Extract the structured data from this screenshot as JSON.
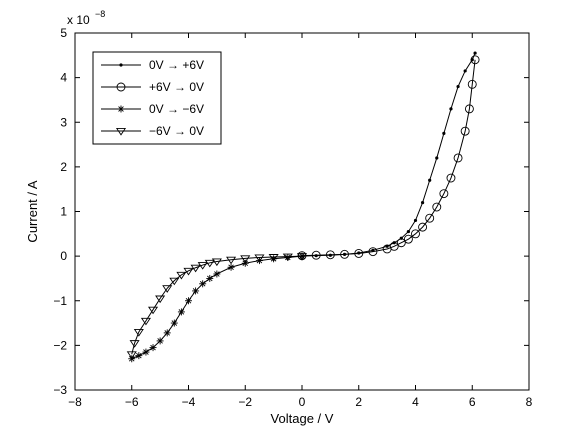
{
  "chart_data": {
    "type": "line",
    "xlabel": "Voltage / V",
    "ylabel": "Current / A",
    "y_exponent_label": "x 10",
    "y_exponent_power": "−8",
    "xlim": [
      -8,
      8
    ],
    "ylim": [
      -3,
      5
    ],
    "x_ticks": [
      -8,
      -6,
      -4,
      -2,
      0,
      2,
      4,
      6,
      8
    ],
    "y_ticks": [
      -3,
      -2,
      -1,
      0,
      1,
      2,
      3,
      4,
      5
    ],
    "x_tick_labels": [
      "−8",
      "−6",
      "−4",
      "−2",
      "0",
      "2",
      "4",
      "6",
      "8"
    ],
    "y_tick_labels": [
      "−3",
      "−2",
      "−1",
      "0",
      "1",
      "2",
      "3",
      "4",
      "5"
    ],
    "legend_position": "top-left",
    "grid": false,
    "series_color": "#000000",
    "series": [
      {
        "name": "0V → +6V",
        "marker": "dot",
        "x": [
          0,
          0.5,
          1,
          1.5,
          2,
          2.5,
          3,
          3.25,
          3.5,
          3.75,
          4,
          4.25,
          4.5,
          4.75,
          5,
          5.25,
          5.5,
          5.75,
          6,
          6.1
        ],
        "y": [
          0,
          0.01,
          0.02,
          0.04,
          0.07,
          0.13,
          0.22,
          0.3,
          0.4,
          0.55,
          0.8,
          1.2,
          1.7,
          2.2,
          2.75,
          3.3,
          3.8,
          4.15,
          4.4,
          4.55
        ]
      },
      {
        "name": "+6V → 0V",
        "marker": "circle",
        "x": [
          6.1,
          6,
          5.9,
          5.75,
          5.5,
          5.25,
          5,
          4.75,
          4.5,
          4.25,
          4,
          3.75,
          3.5,
          3.25,
          3,
          2.5,
          2,
          1.5,
          1,
          0.5,
          0
        ],
        "y": [
          4.4,
          3.85,
          3.3,
          2.8,
          2.2,
          1.75,
          1.4,
          1.1,
          0.85,
          0.65,
          0.5,
          0.38,
          0.3,
          0.22,
          0.16,
          0.1,
          0.06,
          0.04,
          0.03,
          0.02,
          0.01
        ]
      },
      {
        "name": "0V → −6V",
        "marker": "asterisk",
        "x": [
          0,
          -0.5,
          -1,
          -1.5,
          -2,
          -2.5,
          -3,
          -3.25,
          -3.5,
          -3.75,
          -4,
          -4.25,
          -4.5,
          -4.75,
          -5,
          -5.25,
          -5.5,
          -5.75,
          -6
        ],
        "y": [
          0,
          -0.03,
          -0.06,
          -0.1,
          -0.16,
          -0.25,
          -0.4,
          -0.5,
          -0.62,
          -0.78,
          -1.0,
          -1.25,
          -1.5,
          -1.72,
          -1.9,
          -2.05,
          -2.15,
          -2.23,
          -2.3
        ]
      },
      {
        "name": "−6V → 0V",
        "marker": "triangle-down",
        "x": [
          -6,
          -5.9,
          -5.75,
          -5.5,
          -5.25,
          -5,
          -4.75,
          -4.5,
          -4.25,
          -4,
          -3.75,
          -3.5,
          -3.25,
          -3,
          -2.5,
          -2,
          -1.5,
          -1,
          -0.5,
          0
        ],
        "y": [
          -2.2,
          -1.95,
          -1.7,
          -1.45,
          -1.2,
          -0.95,
          -0.72,
          -0.55,
          -0.42,
          -0.33,
          -0.26,
          -0.2,
          -0.15,
          -0.12,
          -0.08,
          -0.05,
          -0.03,
          -0.02,
          -0.01,
          0
        ]
      }
    ]
  }
}
